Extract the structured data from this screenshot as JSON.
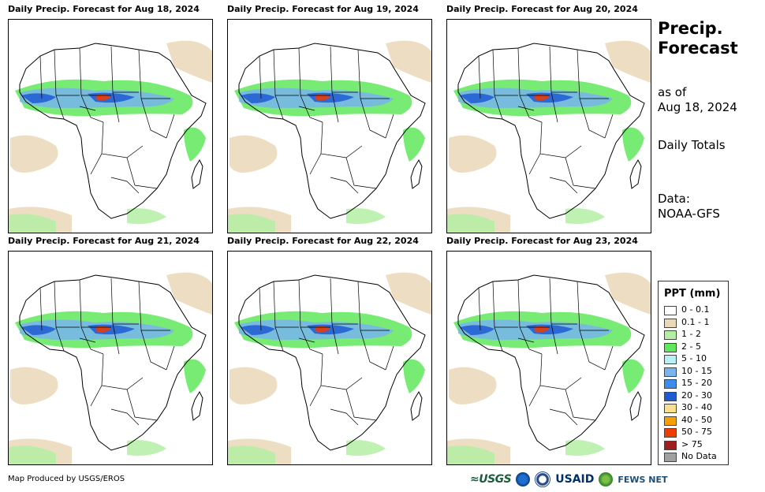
{
  "panels": [
    {
      "title": "Daily Precip. Forecast for Aug 18, 2024"
    },
    {
      "title": "Daily Precip. Forecast for Aug 19, 2024"
    },
    {
      "title": "Daily Precip. Forecast for Aug 20, 2024"
    },
    {
      "title": "Daily Precip. Forecast for Aug 21, 2024"
    },
    {
      "title": "Daily Precip. Forecast for Aug 22, 2024"
    },
    {
      "title": "Daily Precip. Forecast for Aug 23, 2024"
    }
  ],
  "side": {
    "title_line1": "Precip.",
    "title_line2": "Forecast",
    "asof_line1": "as of",
    "asof_line2": "Aug 18, 2024",
    "totals": "Daily Totals",
    "data_line1": "Data:",
    "data_line2": "NOAA-GFS"
  },
  "legend": {
    "title": "PPT (mm)",
    "items": [
      {
        "label": "0 - 0.1",
        "color": "#ffffff"
      },
      {
        "label": "0.1 - 1",
        "color": "#ead8b8"
      },
      {
        "label": "1 - 2",
        "color": "#b4eea4"
      },
      {
        "label": "2 - 5",
        "color": "#5fe85c"
      },
      {
        "label": "5 - 10",
        "color": "#b8f0f8"
      },
      {
        "label": "10 - 15",
        "color": "#78b4f0"
      },
      {
        "label": "15 - 20",
        "color": "#3c8cf0"
      },
      {
        "label": "20 - 30",
        "color": "#1e5ad2"
      },
      {
        "label": "30 - 40",
        "color": "#f8e08c"
      },
      {
        "label": "40 - 50",
        "color": "#f8a000"
      },
      {
        "label": "50 - 75",
        "color": "#f03c00"
      },
      {
        "label": "> 75",
        "color": "#a01e1e"
      },
      {
        "label": "No Data",
        "color": "#a0a0a0"
      }
    ]
  },
  "footer": {
    "credit": "Map Produced by USGS/EROS",
    "logo_usgs": "≈USGS",
    "logo_usaid": "USAID",
    "logo_fews": "FEWS NET"
  }
}
